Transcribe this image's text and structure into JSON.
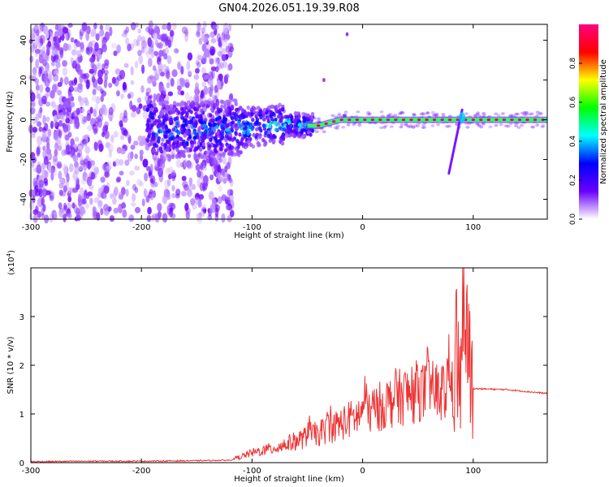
{
  "title": "GN04.2026.051.19.39.R08",
  "chart_data": [
    {
      "type": "heatmap",
      "title": "GN04.2026.051.19.39.R08",
      "xlabel": "Height of straight line (km)",
      "ylabel": "Frequency (Hz)",
      "xlim": [
        -300,
        167
      ],
      "ylim": [
        -50,
        48
      ],
      "x_ticks": [
        -300,
        -200,
        -100,
        0,
        100
      ],
      "y_ticks": [
        -40,
        -20,
        0,
        20,
        40
      ],
      "colorbar": {
        "label": "Normalized spectral amplitude",
        "range": [
          0,
          1
        ],
        "ticks": [
          "0.0",
          "0.2",
          "0.4",
          "0.6",
          "0.8"
        ],
        "colormap": [
          "#ffffff",
          "#6a00ff",
          "#0000ff",
          "#00ffff",
          "#00ff00",
          "#ffff00",
          "#ff0000",
          "#ff0080"
        ]
      },
      "noise_region_x": [
        -300,
        -118
      ],
      "signal_centerline": [
        {
          "x": -190,
          "y": -5
        },
        {
          "x": -150,
          "y": -5
        },
        {
          "x": -110,
          "y": -4
        },
        {
          "x": -70,
          "y": -2
        },
        {
          "x": -50,
          "y": -3
        },
        {
          "x": -40,
          "y": -3
        },
        {
          "x": -20,
          "y": 0
        },
        {
          "x": 0,
          "y": 0
        },
        {
          "x": 50,
          "y": 0
        },
        {
          "x": 90,
          "y": 0
        },
        {
          "x": 130,
          "y": 0
        },
        {
          "x": 167,
          "y": 0
        }
      ],
      "spur_segment": [
        {
          "x": 78,
          "y": -27
        },
        {
          "x": 90,
          "y": 5
        }
      ],
      "isolated_points": [
        {
          "x": -35,
          "y": 20
        },
        {
          "x": -14,
          "y": 43
        }
      ]
    },
    {
      "type": "line",
      "xlabel": "Height of straight line (km)",
      "ylabel": "SNR (10 * v/v)",
      "y_exponent_label": "(x10",
      "y_exponent_power": "4",
      "y_exponent_close": ")",
      "xlim": [
        -300,
        167
      ],
      "ylim": [
        0,
        4
      ],
      "x_ticks": [
        -300,
        -200,
        -100,
        0,
        100
      ],
      "y_ticks": [
        0,
        1,
        2,
        3
      ],
      "color": "#ee3333",
      "envelope": [
        {
          "x": -300,
          "y": 0.02
        },
        {
          "x": -250,
          "y": 0.03
        },
        {
          "x": -200,
          "y": 0.03
        },
        {
          "x": -150,
          "y": 0.04
        },
        {
          "x": -120,
          "y": 0.05
        },
        {
          "x": -100,
          "y": 0.2
        },
        {
          "x": -80,
          "y": 0.3
        },
        {
          "x": -60,
          "y": 0.45
        },
        {
          "x": -40,
          "y": 0.6
        },
        {
          "x": -20,
          "y": 0.8
        },
        {
          "x": 0,
          "y": 1.0
        },
        {
          "x": 20,
          "y": 1.2
        },
        {
          "x": 40,
          "y": 1.4
        },
        {
          "x": 60,
          "y": 1.45
        },
        {
          "x": 80,
          "y": 1.45
        },
        {
          "x": 95,
          "y": 1.6
        },
        {
          "x": 100,
          "y": 1.52
        },
        {
          "x": 130,
          "y": 1.5
        },
        {
          "x": 167,
          "y": 1.42
        }
      ],
      "peaks": [
        {
          "x": -48,
          "y": 1.25
        },
        {
          "x": -30,
          "y": 1.55
        },
        {
          "x": 2,
          "y": 1.65
        },
        {
          "x": 30,
          "y": 1.95
        },
        {
          "x": 50,
          "y": 2.05
        },
        {
          "x": 60,
          "y": 2.3
        },
        {
          "x": 78,
          "y": 2.4
        },
        {
          "x": 85,
          "y": 2.6
        },
        {
          "x": 91,
          "y": 4.0
        },
        {
          "x": 95,
          "y": 3.3
        }
      ]
    }
  ]
}
